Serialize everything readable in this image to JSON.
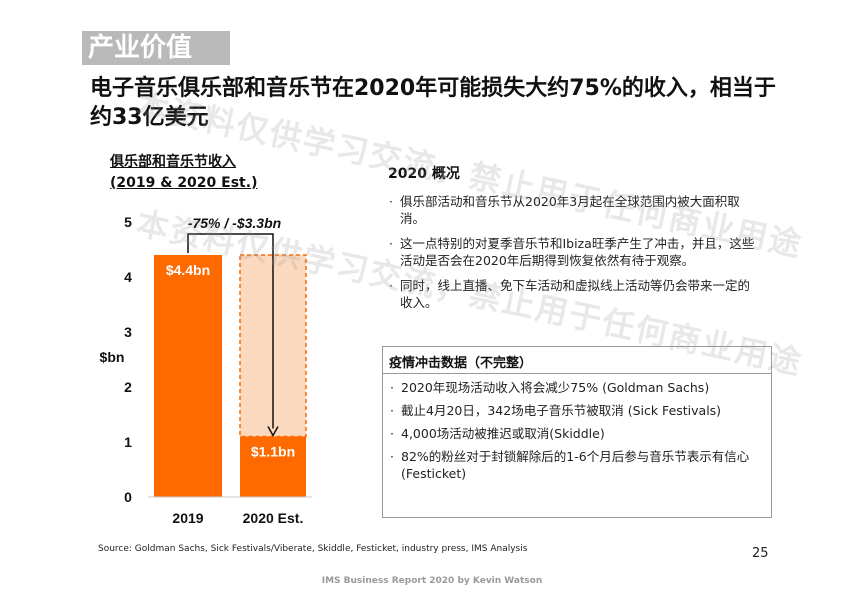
{
  "section_tag": "产业价值",
  "headline": "电子音乐俱乐部和音乐节在2020年可能损失大约75%的收入，相当于约33亿美元",
  "chart_title_line1": "俱乐部和音乐节收入",
  "chart_title_line2": "(2019 & 2020 Est.)",
  "overview": {
    "title": "2020 概况",
    "bullets": [
      "俱乐部活动和音乐节从2020年3月起在全球范围内被大面积取消。",
      "这一点特别的对夏季音乐节和Ibiza旺季产生了冲击，并且，这些活动是否会在2020年后期得到恢复依然有待于观察。",
      "同时，线上直播、免下车活动和虚拟线上活动等仍会带来一定的收入。"
    ]
  },
  "impact": {
    "title": "疫情冲击数据（不完整）",
    "bullets": [
      "2020年现场活动收入将会减少75% (Goldman Sachs)",
      "截止4月20日，342场电子音乐节被取消 (Sick Festivals)",
      "4,000场活动被推迟或取消(Skiddle)",
      "82%的粉丝对于封锁解除后的1-6个月后参与音乐节表示有信心 (Festicket)"
    ]
  },
  "watermark": "本资料仅供学习交流，禁止用于任何商业用途",
  "source": "Source: Goldman Sachs, Sick Festivals/Viberate, Skiddle, Festicket, industry press, IMS Analysis",
  "page_number": "25",
  "footer": "IMS Business Report 2020 by Kevin Watson",
  "colors": {
    "bar": "#ff6a00",
    "ghost_bar": "#fbd9bf",
    "ghost_border": "#ff6a00"
  },
  "chart_data": {
    "type": "bar",
    "categories": [
      "2019",
      "2020 Est."
    ],
    "values": [
      4.4,
      1.1
    ],
    "data_labels": [
      "$4.4bn",
      "$1.1bn"
    ],
    "ylabel": "$bn",
    "ylim": [
      0,
      5
    ],
    "yticks": [
      0,
      1,
      2,
      3,
      4,
      5
    ],
    "reference_value": 4.4,
    "annotation": "-75% / -$3.3bn",
    "grid": false,
    "legend": "none"
  }
}
